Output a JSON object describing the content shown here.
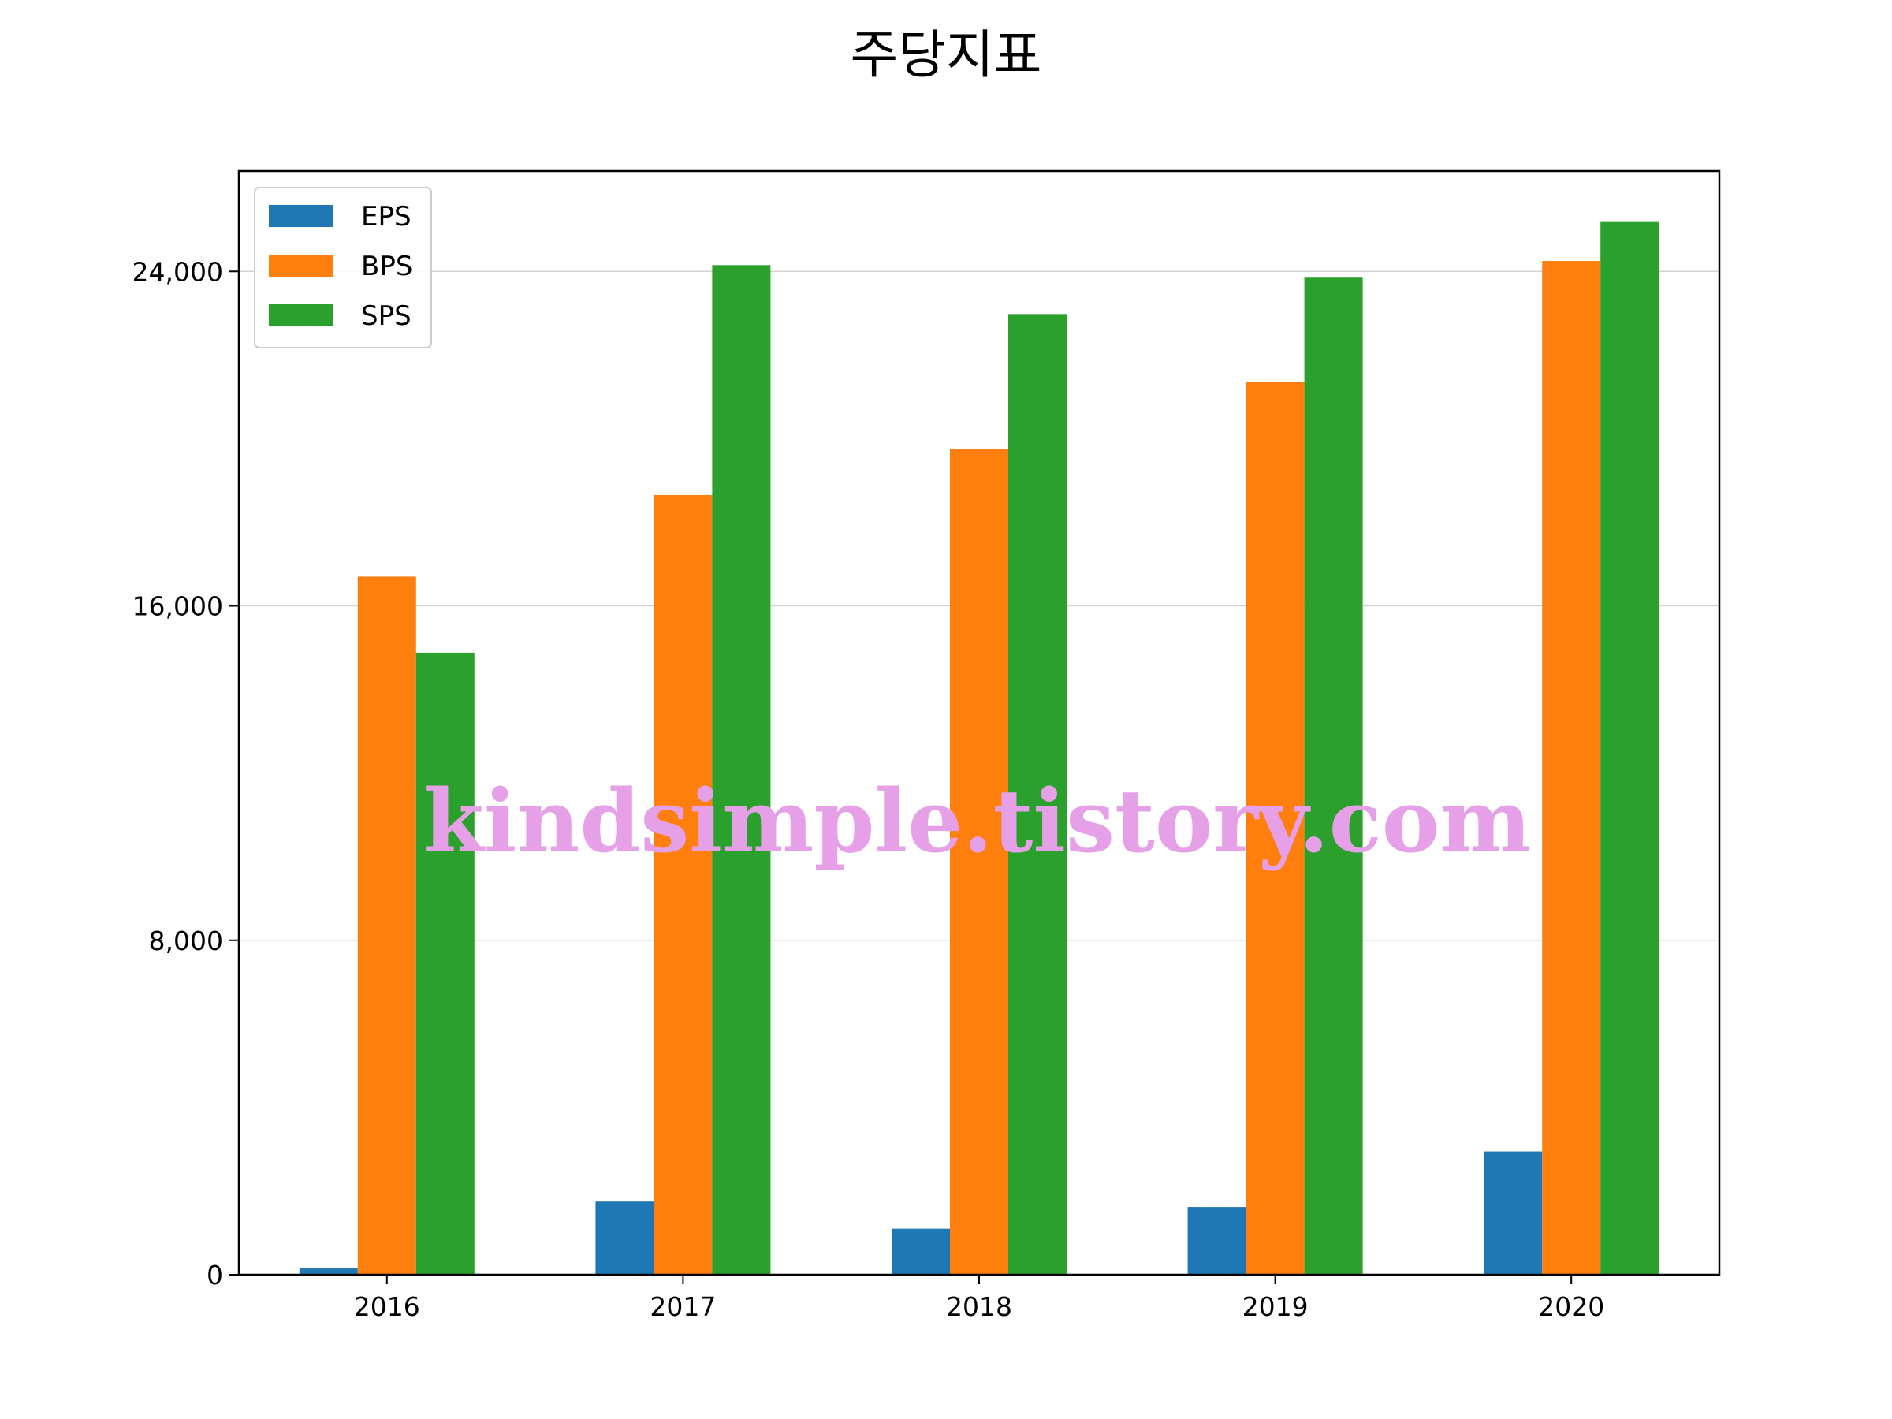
{
  "chart_data": {
    "type": "bar",
    "title": "주당지표",
    "xlabel": "",
    "ylabel": "",
    "categories": [
      "2016",
      "2017",
      "2018",
      "2019",
      "2020"
    ],
    "series": [
      {
        "name": "EPS",
        "color": "#1f77b4",
        "values": [
          150,
          1750,
          1100,
          1620,
          2950
        ]
      },
      {
        "name": "BPS",
        "color": "#ff7f0e",
        "values": [
          16700,
          18650,
          19750,
          21350,
          24250
        ]
      },
      {
        "name": "SPS",
        "color": "#2ca02c",
        "values": [
          14880,
          24150,
          22980,
          23850,
          25200
        ]
      }
    ],
    "ylim": [
      0,
      26400
    ],
    "yticks": [
      0,
      8000,
      16000,
      24000
    ],
    "ytick_labels": [
      "0",
      "8,000",
      "16,000",
      "24,000"
    ],
    "grid": "horizontal",
    "legend_position": "top-left",
    "watermark": "kindsimple.tistory.com"
  }
}
